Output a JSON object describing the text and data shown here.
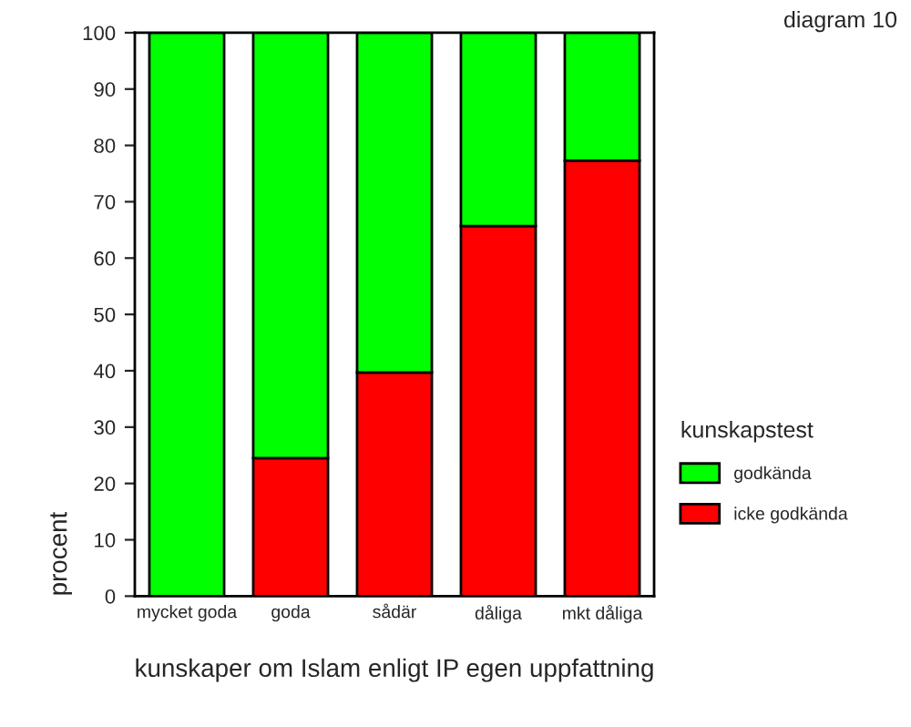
{
  "chart_data": {
    "type": "bar",
    "title": "diagram 10",
    "xlabel": "kunskaper om Islam enligt IP egen uppfattning",
    "ylabel": "procent",
    "legend_title": "kunskapstest",
    "categories": [
      "mycket goda",
      "goda",
      "sådär",
      "dåliga",
      "mkt dåliga"
    ],
    "stacked": true,
    "series": [
      {
        "name": "icke godkända",
        "color": "#ff0000",
        "values": [
          0,
          24.5,
          39.7,
          65.7,
          77.3
        ]
      },
      {
        "name": "godkända",
        "color": "#00ff00",
        "values": [
          100,
          75.5,
          60.3,
          34.3,
          22.7
        ]
      }
    ],
    "ylim": [
      0,
      100
    ],
    "yticks": [
      0,
      10,
      20,
      30,
      40,
      50,
      60,
      70,
      80,
      90,
      100
    ],
    "grid": false,
    "legend": "right"
  }
}
